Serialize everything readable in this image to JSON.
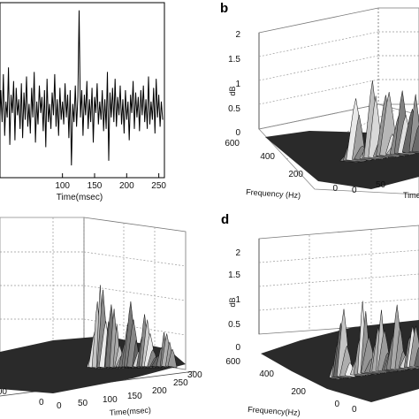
{
  "panels": {
    "b": {
      "letter": "b"
    },
    "d": {
      "letter": "d"
    }
  },
  "chart_data": [
    {
      "panel": "a",
      "type": "line",
      "xlabel": "Time(msec)",
      "ylabel": "",
      "xlim": [
        0,
        256
      ],
      "xticks": [
        100,
        150,
        200,
        250
      ],
      "x_step": 2,
      "x": [
        0,
        2,
        4,
        6,
        8,
        10,
        12,
        14,
        16,
        18,
        20,
        22,
        24,
        26,
        28,
        30,
        32,
        34,
        36,
        38,
        40,
        42,
        44,
        46,
        48,
        50,
        52,
        54,
        56,
        58,
        60,
        62,
        64,
        66,
        68,
        70,
        72,
        74,
        76,
        78,
        80,
        82,
        84,
        86,
        88,
        90,
        92,
        94,
        96,
        98,
        100,
        102,
        104,
        106,
        108,
        110,
        112,
        114,
        116,
        118,
        120,
        122,
        124,
        126,
        128,
        130,
        132,
        134,
        136,
        138,
        140,
        142,
        144,
        146,
        148,
        150,
        152,
        154,
        156,
        158,
        160,
        162,
        164,
        166,
        168,
        170,
        172,
        174,
        176,
        178,
        180,
        182,
        184,
        186,
        188,
        190,
        192,
        194,
        196,
        198,
        200,
        202,
        204,
        206,
        208,
        210,
        212,
        214,
        216,
        218,
        220,
        222,
        224,
        226,
        228,
        230,
        232,
        234,
        236,
        238,
        240,
        242,
        244,
        246,
        248,
        250,
        252,
        254,
        256
      ],
      "y": [
        0.5,
        -1.0,
        0.8,
        -0.6,
        1.5,
        -1.2,
        0.3,
        -0.4,
        1.8,
        -1.6,
        0.6,
        -0.2,
        1.2,
        -1.4,
        0.9,
        -0.3,
        0.4,
        -0.9,
        1.1,
        -1.3,
        0.7,
        -0.5,
        1.4,
        -0.8,
        0.2,
        -1.1,
        0.9,
        -0.4,
        1.6,
        -1.5,
        0.3,
        -0.7,
        1.0,
        -0.2,
        0.5,
        -1.0,
        0.8,
        -1.7,
        1.3,
        -0.6,
        0.2,
        -0.9,
        0.7,
        -0.3,
        1.5,
        -0.8,
        0.4,
        -1.2,
        0.9,
        -0.5,
        0.3,
        -0.7,
        1.1,
        -0.4,
        0.6,
        -1.3,
        0.8,
        -2.5,
        0.2,
        -0.6,
        1.0,
        -0.8,
        0.5,
        4.3,
        -0.4,
        0.8,
        -1.2,
        0.6,
        -0.3,
        1.2,
        -0.9,
        0.4,
        -0.6,
        0.9,
        -1.5,
        0.5,
        -0.2,
        1.1,
        -0.7,
        0.3,
        -0.5,
        0.8,
        -1.0,
        0.4,
        -0.9,
        1.6,
        -2.3,
        0.7,
        -0.4,
        0.9,
        -0.6,
        1.3,
        -0.8,
        0.5,
        -0.3,
        1.0,
        -0.7,
        0.4,
        -1.1,
        0.8,
        -0.5,
        0.3,
        -1.4,
        0.6,
        -0.2,
        1.2,
        -0.9,
        0.7,
        -0.4,
        0.5,
        -1.0,
        0.8,
        -0.3,
        1.0,
        -0.6,
        0.4,
        -0.9,
        1.4,
        -0.7,
        0.3,
        -0.5,
        0.9,
        -1.1,
        1.3,
        -0.4,
        0.6,
        -0.8,
        0.3,
        -0.5
      ],
      "grid": false
    },
    {
      "panel": "b",
      "type": "surface",
      "xlabel": "Frequency (Hz)",
      "ylabel": "Time",
      "zlabel": "dB",
      "xticks": [
        600,
        400,
        200,
        0
      ],
      "yticks": [
        0,
        50
      ],
      "zticks": [
        0,
        0.5,
        1,
        1.5,
        2
      ],
      "zlim": [
        0,
        2
      ],
      "grid": true,
      "peaks": [
        {
          "time": 65,
          "freq": 160,
          "db": 0.95
        },
        {
          "time": 85,
          "freq": 140,
          "db": 1.25
        },
        {
          "time": 110,
          "freq": 160,
          "db": 1.05
        },
        {
          "time": 130,
          "freq": 130,
          "db": 1.1
        },
        {
          "time": 150,
          "freq": 180,
          "db": 0.85
        }
      ]
    },
    {
      "panel": "c",
      "type": "surface",
      "xlabel": "Time(msec)",
      "ylabel": "",
      "zlabel": "",
      "xticks": [
        0,
        50,
        100,
        150,
        200,
        250,
        300
      ],
      "yticks": [
        100,
        0
      ],
      "grid": true,
      "peaks": [
        {
          "time": 150,
          "freq": 140,
          "db": 1.05
        },
        {
          "time": 160,
          "freq": 160,
          "db": 0.8
        },
        {
          "time": 175,
          "freq": 170,
          "db": 0.7
        },
        {
          "time": 190,
          "freq": 150,
          "db": 0.6
        },
        {
          "time": 215,
          "freq": 180,
          "db": 0.4
        }
      ]
    },
    {
      "panel": "d",
      "type": "surface",
      "xlabel": "Frequency(Hz)",
      "ylabel": "",
      "zlabel": "dB",
      "xticks": [
        600,
        400,
        200,
        0
      ],
      "yticks": [
        0
      ],
      "zticks": [
        0,
        0.5,
        1,
        1.5,
        2
      ],
      "zlim": [
        0,
        2
      ],
      "grid": true,
      "peaks": [
        {
          "time": 80,
          "freq": 170,
          "db": 0.85
        },
        {
          "time": 100,
          "freq": 150,
          "db": 1.0
        },
        {
          "time": 120,
          "freq": 160,
          "db": 0.8
        },
        {
          "time": 140,
          "freq": 140,
          "db": 0.75
        },
        {
          "time": 160,
          "freq": 170,
          "db": 0.6
        }
      ]
    }
  ]
}
